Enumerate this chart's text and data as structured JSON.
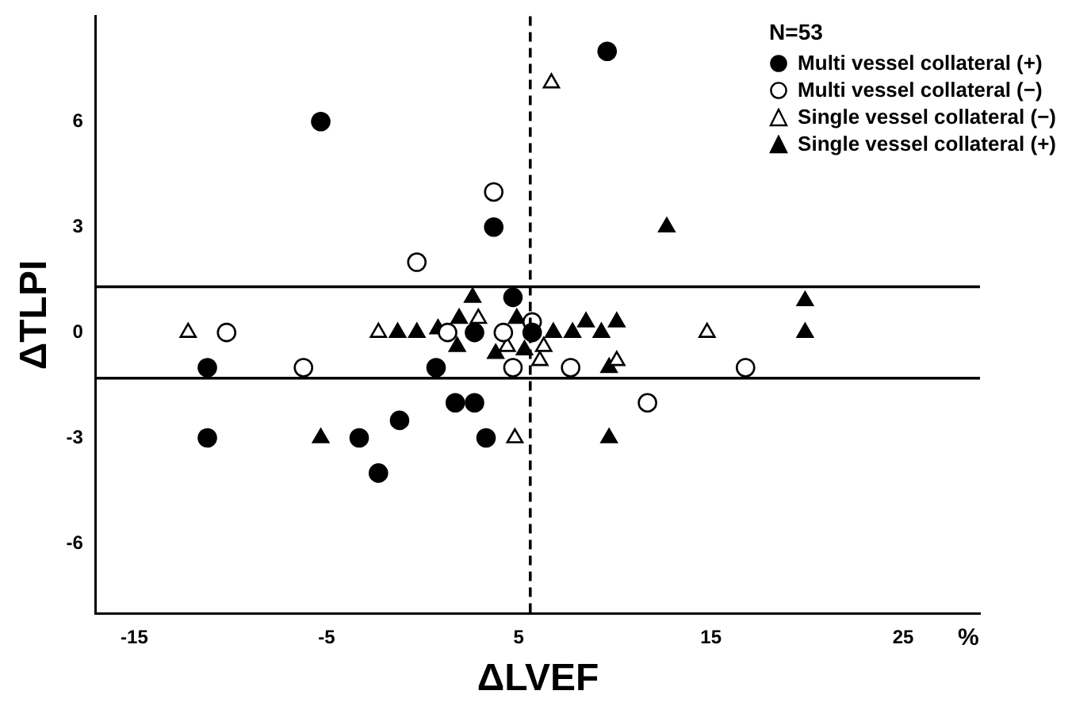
{
  "chart_data": {
    "type": "scatter",
    "xlabel": "ΔLVEF",
    "ylabel": "ΔTLPI",
    "legend_title": "N=53",
    "legend": "top right",
    "grid": false,
    "xlim": [
      -17,
      29
    ],
    "xticks": [
      -15,
      -5,
      5,
      15,
      25
    ],
    "ylim": [
      -8,
      9
    ],
    "yticks": [
      -6,
      -3,
      0,
      3,
      6
    ],
    "annotations": [
      "%"
    ],
    "ref_lines": [
      {
        "axis": "x",
        "value": 5.6,
        "label": null,
        "line_style": "dashed"
      },
      {
        "axis": "y",
        "value": 1.3,
        "label": null,
        "line_style": "solid"
      },
      {
        "axis": "y",
        "value": -1.3,
        "label": null,
        "line_style": "solid"
      }
    ],
    "series": [
      {
        "name": "Multi vessel collateral (+)",
        "color": "#000000",
        "marker": "circle",
        "x": [
          -5.3,
          9.6,
          3.7,
          4.7,
          2.7,
          5.7,
          -11.2,
          0.7,
          1.7,
          2.7,
          -11.2,
          -3.3,
          -1.2,
          -2.3,
          3.3
        ],
        "values": [
          6,
          8,
          3,
          1,
          0,
          0,
          -1,
          -1,
          -2,
          -2,
          -3,
          -3,
          -2.5,
          -4,
          -3
        ]
      },
      {
        "name": "Multi vessel collateral (−)",
        "color": "#ffffff",
        "marker": "circle",
        "x": [
          3.7,
          -0.3,
          -10.2,
          1.3,
          4.2,
          5.7,
          -6.2,
          4.7,
          7.7,
          16.8,
          11.7
        ],
        "values": [
          4,
          2,
          0,
          0,
          0,
          0.3,
          -1,
          -1,
          -1,
          -1,
          -2
        ]
      },
      {
        "name": "Single vessel collateral (−)",
        "color": "#ffffff",
        "marker": "triangle",
        "x": [
          6.7,
          -12.2,
          -2.3,
          2.9,
          4.4,
          6.3,
          6.1,
          10.1,
          4.8,
          14.8
        ],
        "values": [
          7.1,
          0,
          0,
          0.4,
          -0.4,
          -0.4,
          -0.8,
          -0.8,
          -3,
          0
        ]
      },
      {
        "name": "Single vessel collateral (+)",
        "color": "#000000",
        "marker": "triangle",
        "x": [
          12.7,
          19.9,
          19.9,
          2.6,
          1.9,
          0.8,
          -1.3,
          -0.3,
          1.8,
          3.8,
          4.9,
          5.3,
          6.8,
          7.8,
          8.5,
          9.3,
          10.1,
          9.7,
          9.7,
          -5.3
        ],
        "values": [
          3,
          0.9,
          0,
          1,
          0.4,
          0.1,
          0,
          0,
          -0.4,
          -0.6,
          0.4,
          -0.5,
          0,
          0,
          0.3,
          0,
          0.3,
          -1,
          -3,
          -3
        ]
      }
    ]
  }
}
